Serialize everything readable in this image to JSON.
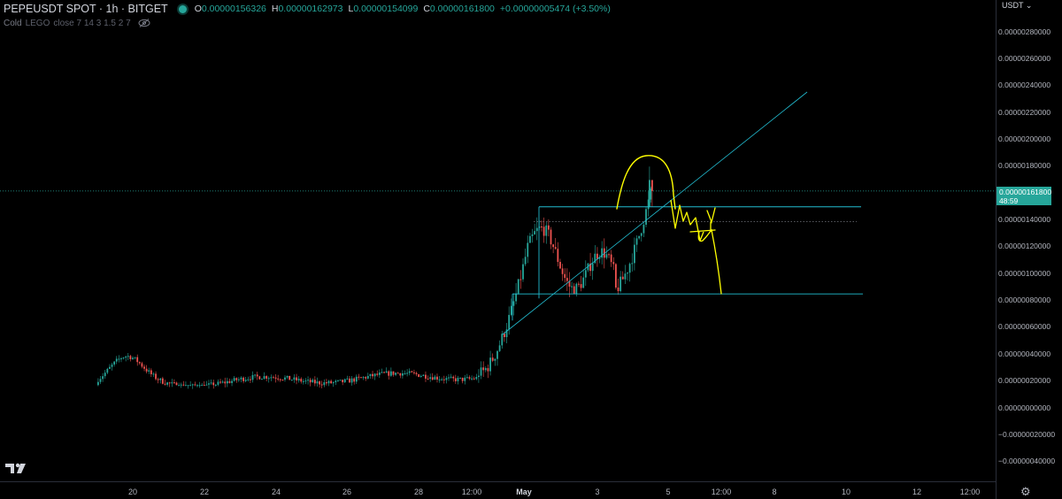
{
  "header": {
    "symbol": "PEPEUSDT SPOT · 1h · BITGET",
    "open_label": "O",
    "open_value": "0.00000156326",
    "high_label": "H",
    "high_value": "0.00000162973",
    "low_label": "L",
    "low_value": "0.00000154099",
    "close_label": "C",
    "close_value": "0.00000161800",
    "change": "+0.00000005474 (+3.50%)",
    "status_color": "#26a69a"
  },
  "indicator": {
    "name": "Cold",
    "hidden_name": "LEGO",
    "params": "close 7 14 3 1.5 2 7",
    "eye_icon": "eye-crossed-icon"
  },
  "price_axis": {
    "currency": "USDT",
    "ticks": [
      "0.00000280000",
      "0.00000260000",
      "0.00000240000",
      "0.00000220000",
      "0.00000200000",
      "0.00000180000",
      "0.00000140000",
      "0.00000120000",
      "0.00000100000",
      "0.00000080000",
      "0.00000060000",
      "0.00000040000",
      "0.00000020000",
      "0.00000000000",
      "−0.00000020000",
      "−0.00000040000"
    ],
    "current_price": "0.00000161800",
    "countdown": "48:59"
  },
  "time_axis": {
    "ticks": [
      "20",
      "22",
      "24",
      "26",
      "28",
      "12:00",
      "May",
      "3",
      "5",
      "12:00",
      "8",
      "10",
      "12",
      "12:00"
    ]
  },
  "colors": {
    "up": "#26a69a",
    "down": "#ef5350",
    "drawing_cyan": "#22bcd0",
    "drawing_yellow": "#ffff00",
    "background": "#000000"
  },
  "chart_data": {
    "type": "candlestick",
    "series": [
      {
        "name": "PEPEUSDT",
        "timeframe": "1h",
        "segments": [
          {
            "from": "Apr 18",
            "to": "Apr 28 12:00",
            "open": 1.7e-07,
            "close": 2.45e-07,
            "low": 1.7e-07,
            "high": 4.5e-07
          },
          {
            "from": "Apr 28 12:00",
            "to": "May 1",
            "open": 2.45e-07,
            "close": 1.2e-06,
            "low": 2.4e-07,
            "high": 1.4e-06
          },
          {
            "from": "May 1",
            "to": "May 3 12:00",
            "open": 1.2e-06,
            "close": 8.7e-07,
            "low": 8.5e-07,
            "high": 1.43e-06
          },
          {
            "from": "May 3 12:00",
            "to": "May 4 12:00",
            "open": 8.7e-07,
            "close": 1.6e-06,
            "low": 8.5e-07,
            "high": 1.8e-06
          }
        ]
      }
    ],
    "last_close": 1.618e-06,
    "ylim": [
      -4.3e-07,
      2.9e-06
    ],
    "grid": false,
    "drawings": {
      "upper_range_line": 1.5e-06,
      "dotted_line": 1.39e-06,
      "lower_range_line": 8.5e-07,
      "current_price_line": 1.618e-06
    }
  }
}
